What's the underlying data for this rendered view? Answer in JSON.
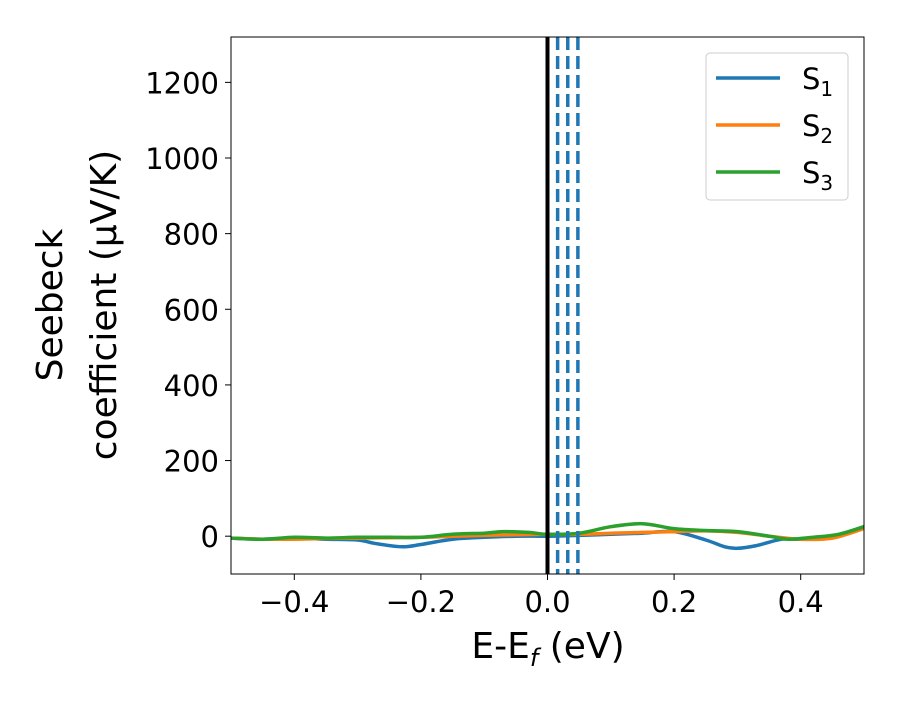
{
  "chart_data": {
    "type": "line",
    "xlabel": "E-E",
    "xlabel_sub": "f",
    "xlabel_unit": " (eV)",
    "ylabel_line1": "Seebeck",
    "ylabel_line2": "coefficient  (μV/K)",
    "xlim": [
      -0.5,
      0.5
    ],
    "ylim": [
      -100,
      1320
    ],
    "xticks": [
      -0.4,
      -0.2,
      0.0,
      0.2,
      0.4
    ],
    "xtick_labels": [
      "−0.4",
      "−0.2",
      "0.0",
      "0.2",
      "0.4"
    ],
    "yticks": [
      0,
      200,
      400,
      600,
      800,
      1000,
      1200
    ],
    "ytick_labels": [
      "0",
      "200",
      "400",
      "600",
      "800",
      "1000",
      "1200"
    ],
    "grid": false,
    "legend_position": "top-right",
    "vertical_lines": [
      {
        "x": 0.0,
        "style": "solid",
        "color": "#000000"
      },
      {
        "x": 0.016,
        "style": "dashed",
        "color": "#1f77b4"
      },
      {
        "x": 0.032,
        "style": "dashed",
        "color": "#1f77b4"
      },
      {
        "x": 0.048,
        "style": "dashed",
        "color": "#1f77b4"
      }
    ],
    "series": [
      {
        "name": "S",
        "name_sub": "1",
        "color": "#1f77b4",
        "x": [
          -0.5,
          -0.45,
          -0.4,
          -0.35,
          -0.3,
          -0.27,
          -0.23,
          -0.2,
          -0.15,
          -0.1,
          -0.05,
          0.0,
          0.05,
          0.1,
          0.15,
          0.2,
          0.25,
          0.28,
          0.3,
          0.33,
          0.37,
          0.4,
          0.45,
          0.5
        ],
        "y": [
          -5,
          -8,
          -5,
          -8,
          -10,
          -20,
          -28,
          -22,
          -8,
          -3,
          0,
          0,
          2,
          5,
          8,
          12,
          -10,
          -28,
          -32,
          -25,
          -8,
          -8,
          0,
          25
        ]
      },
      {
        "name": "S",
        "name_sub": "2",
        "color": "#ff7f0e",
        "x": [
          -0.5,
          -0.45,
          -0.4,
          -0.35,
          -0.3,
          -0.25,
          -0.2,
          -0.15,
          -0.1,
          -0.05,
          0.0,
          0.05,
          0.1,
          0.15,
          0.2,
          0.25,
          0.3,
          0.35,
          0.4,
          0.45,
          0.5
        ],
        "y": [
          -5,
          -8,
          -8,
          -6,
          -5,
          -4,
          -3,
          0,
          2,
          4,
          5,
          5,
          8,
          10,
          12,
          14,
          10,
          0,
          -8,
          -5,
          20
        ]
      },
      {
        "name": "S",
        "name_sub": "3",
        "color": "#2ca02c",
        "x": [
          -0.5,
          -0.45,
          -0.4,
          -0.35,
          -0.3,
          -0.25,
          -0.2,
          -0.15,
          -0.1,
          -0.07,
          -0.03,
          0.0,
          0.05,
          0.1,
          0.15,
          0.2,
          0.25,
          0.3,
          0.35,
          0.38,
          0.42,
          0.46,
          0.5
        ],
        "y": [
          -5,
          -8,
          -3,
          -5,
          -3,
          -3,
          -3,
          5,
          8,
          12,
          10,
          5,
          8,
          25,
          33,
          20,
          15,
          12,
          0,
          -8,
          -3,
          5,
          25
        ]
      }
    ]
  }
}
